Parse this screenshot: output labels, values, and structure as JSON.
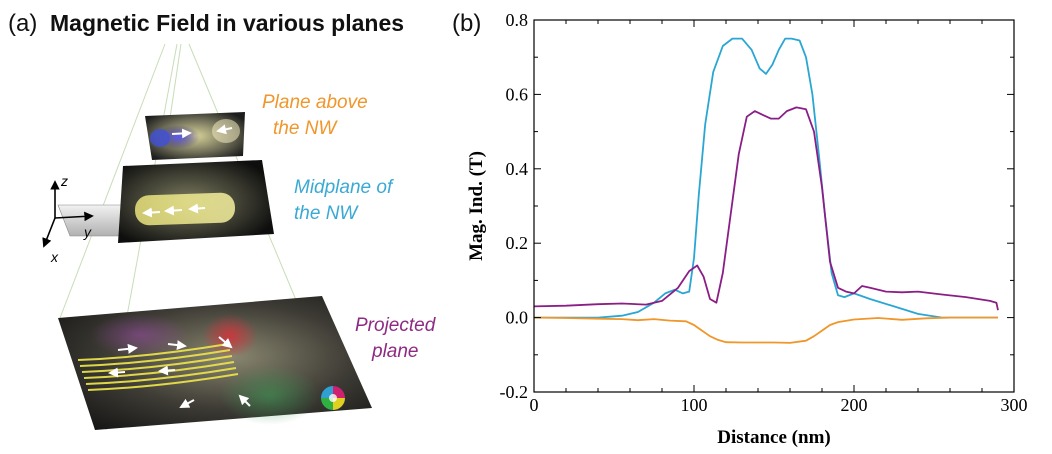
{
  "figure": {
    "panel_a_label": "(a)",
    "panel_a_title": "Magnetic Field in various planes",
    "panel_b_label": "(b)",
    "planes": [
      {
        "line1": "Plane above",
        "line2": "the NW",
        "color": "#f0962a"
      },
      {
        "line1": "Midplane of",
        "line2": "the NW",
        "color": "#3aa9d4"
      },
      {
        "line1": "Projected",
        "line2": "plane",
        "color": "#8e2a82"
      }
    ],
    "axes_triad": {
      "z": "z",
      "y": "y",
      "x": "x"
    },
    "colors": {
      "cyan": "#2aa6d3",
      "purple": "#8b1e86",
      "orange": "#f0962a",
      "nanowire_yellow": "#f2ec4a"
    }
  },
  "chart_data": {
    "type": "line",
    "xlabel": "Distance (nm)",
    "ylabel": "Mag. Ind. (T)",
    "xlim": [
      0,
      300
    ],
    "ylim": [
      -0.2,
      0.8
    ],
    "xticks": [
      "0",
      "100",
      "200",
      "300"
    ],
    "yticks": [
      "-0.2",
      "0.0",
      "0.2",
      "0.4",
      "0.6",
      "0.8"
    ],
    "grid": false,
    "legend": "none",
    "series": [
      {
        "color": "#2aa6d3",
        "x": [
          0,
          20,
          40,
          55,
          65,
          75,
          82,
          88,
          93,
          97,
          100,
          103,
          107,
          112,
          118,
          124,
          130,
          136,
          141,
          145,
          149,
          153,
          157,
          161,
          166,
          170,
          174,
          178,
          182,
          186,
          190,
          194,
          200,
          210,
          225,
          240,
          255,
          270,
          290
        ],
        "y": [
          0.0,
          0.0,
          0.0,
          0.005,
          0.015,
          0.04,
          0.065,
          0.075,
          0.065,
          0.07,
          0.16,
          0.33,
          0.52,
          0.66,
          0.73,
          0.75,
          0.75,
          0.72,
          0.67,
          0.655,
          0.68,
          0.72,
          0.75,
          0.75,
          0.745,
          0.7,
          0.6,
          0.44,
          0.27,
          0.12,
          0.06,
          0.055,
          0.065,
          0.05,
          0.03,
          0.01,
          0.0,
          0.0,
          0.0
        ]
      },
      {
        "color": "#8b1e86",
        "x": [
          0,
          20,
          40,
          55,
          70,
          80,
          90,
          97,
          102,
          106,
          110,
          114,
          118,
          123,
          128,
          133,
          138,
          143,
          148,
          153,
          158,
          164,
          170,
          175,
          180,
          185,
          190,
          195,
          200,
          205,
          210,
          220,
          230,
          240,
          255,
          270,
          285,
          289,
          290
        ],
        "y": [
          0.03,
          0.032,
          0.036,
          0.038,
          0.035,
          0.045,
          0.08,
          0.125,
          0.14,
          0.11,
          0.05,
          0.04,
          0.12,
          0.28,
          0.44,
          0.54,
          0.555,
          0.545,
          0.535,
          0.535,
          0.555,
          0.565,
          0.56,
          0.5,
          0.35,
          0.15,
          0.08,
          0.07,
          0.065,
          0.085,
          0.08,
          0.07,
          0.068,
          0.07,
          0.062,
          0.055,
          0.045,
          0.04,
          0.02
        ]
      },
      {
        "color": "#f0962a",
        "x": [
          0,
          20,
          40,
          55,
          65,
          75,
          85,
          95,
          100,
          105,
          110,
          115,
          120,
          130,
          140,
          150,
          160,
          170,
          175,
          180,
          185,
          190,
          200,
          215,
          230,
          245,
          260,
          275,
          290
        ],
        "y": [
          0.0,
          -0.001,
          -0.003,
          -0.004,
          -0.007,
          -0.004,
          -0.008,
          -0.01,
          -0.02,
          -0.035,
          -0.05,
          -0.06,
          -0.066,
          -0.067,
          -0.067,
          -0.067,
          -0.068,
          -0.062,
          -0.05,
          -0.035,
          -0.02,
          -0.012,
          -0.005,
          -0.001,
          -0.006,
          -0.002,
          0.0,
          0.0,
          0.0
        ]
      }
    ]
  }
}
